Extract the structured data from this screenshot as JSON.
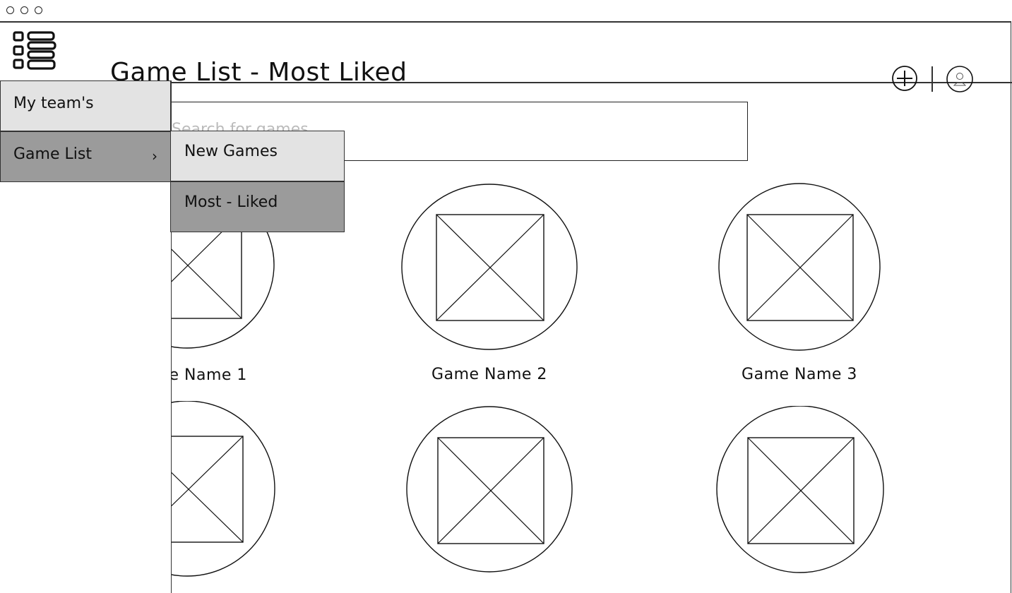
{
  "header": {
    "title": "Game List - Most Liked"
  },
  "search": {
    "placeholder": "Search for games",
    "value": ""
  },
  "games": [
    {
      "name": "Game Name 1"
    },
    {
      "name": "Game Name 2"
    },
    {
      "name": "Game Name 3"
    },
    {
      "name": ""
    },
    {
      "name": ""
    },
    {
      "name": ""
    }
  ],
  "sidebar": {
    "items": [
      {
        "label": "My team's",
        "state": "default"
      },
      {
        "label": "Game List",
        "state": "expanded",
        "chevron": "›"
      }
    ]
  },
  "submenu": {
    "items": [
      {
        "label": "New Games",
        "state": "default"
      },
      {
        "label": "Most - Liked",
        "state": "selected"
      }
    ]
  },
  "icons": {
    "menu": "hamburger-list-icon",
    "add": "plus-circle-icon",
    "profile": "user-circle-icon",
    "thumbnail": "image-placeholder-icon"
  },
  "colors": {
    "menu_light": "#e3e3e3",
    "menu_dark": "#9b9b9b",
    "stroke": "#222222"
  }
}
